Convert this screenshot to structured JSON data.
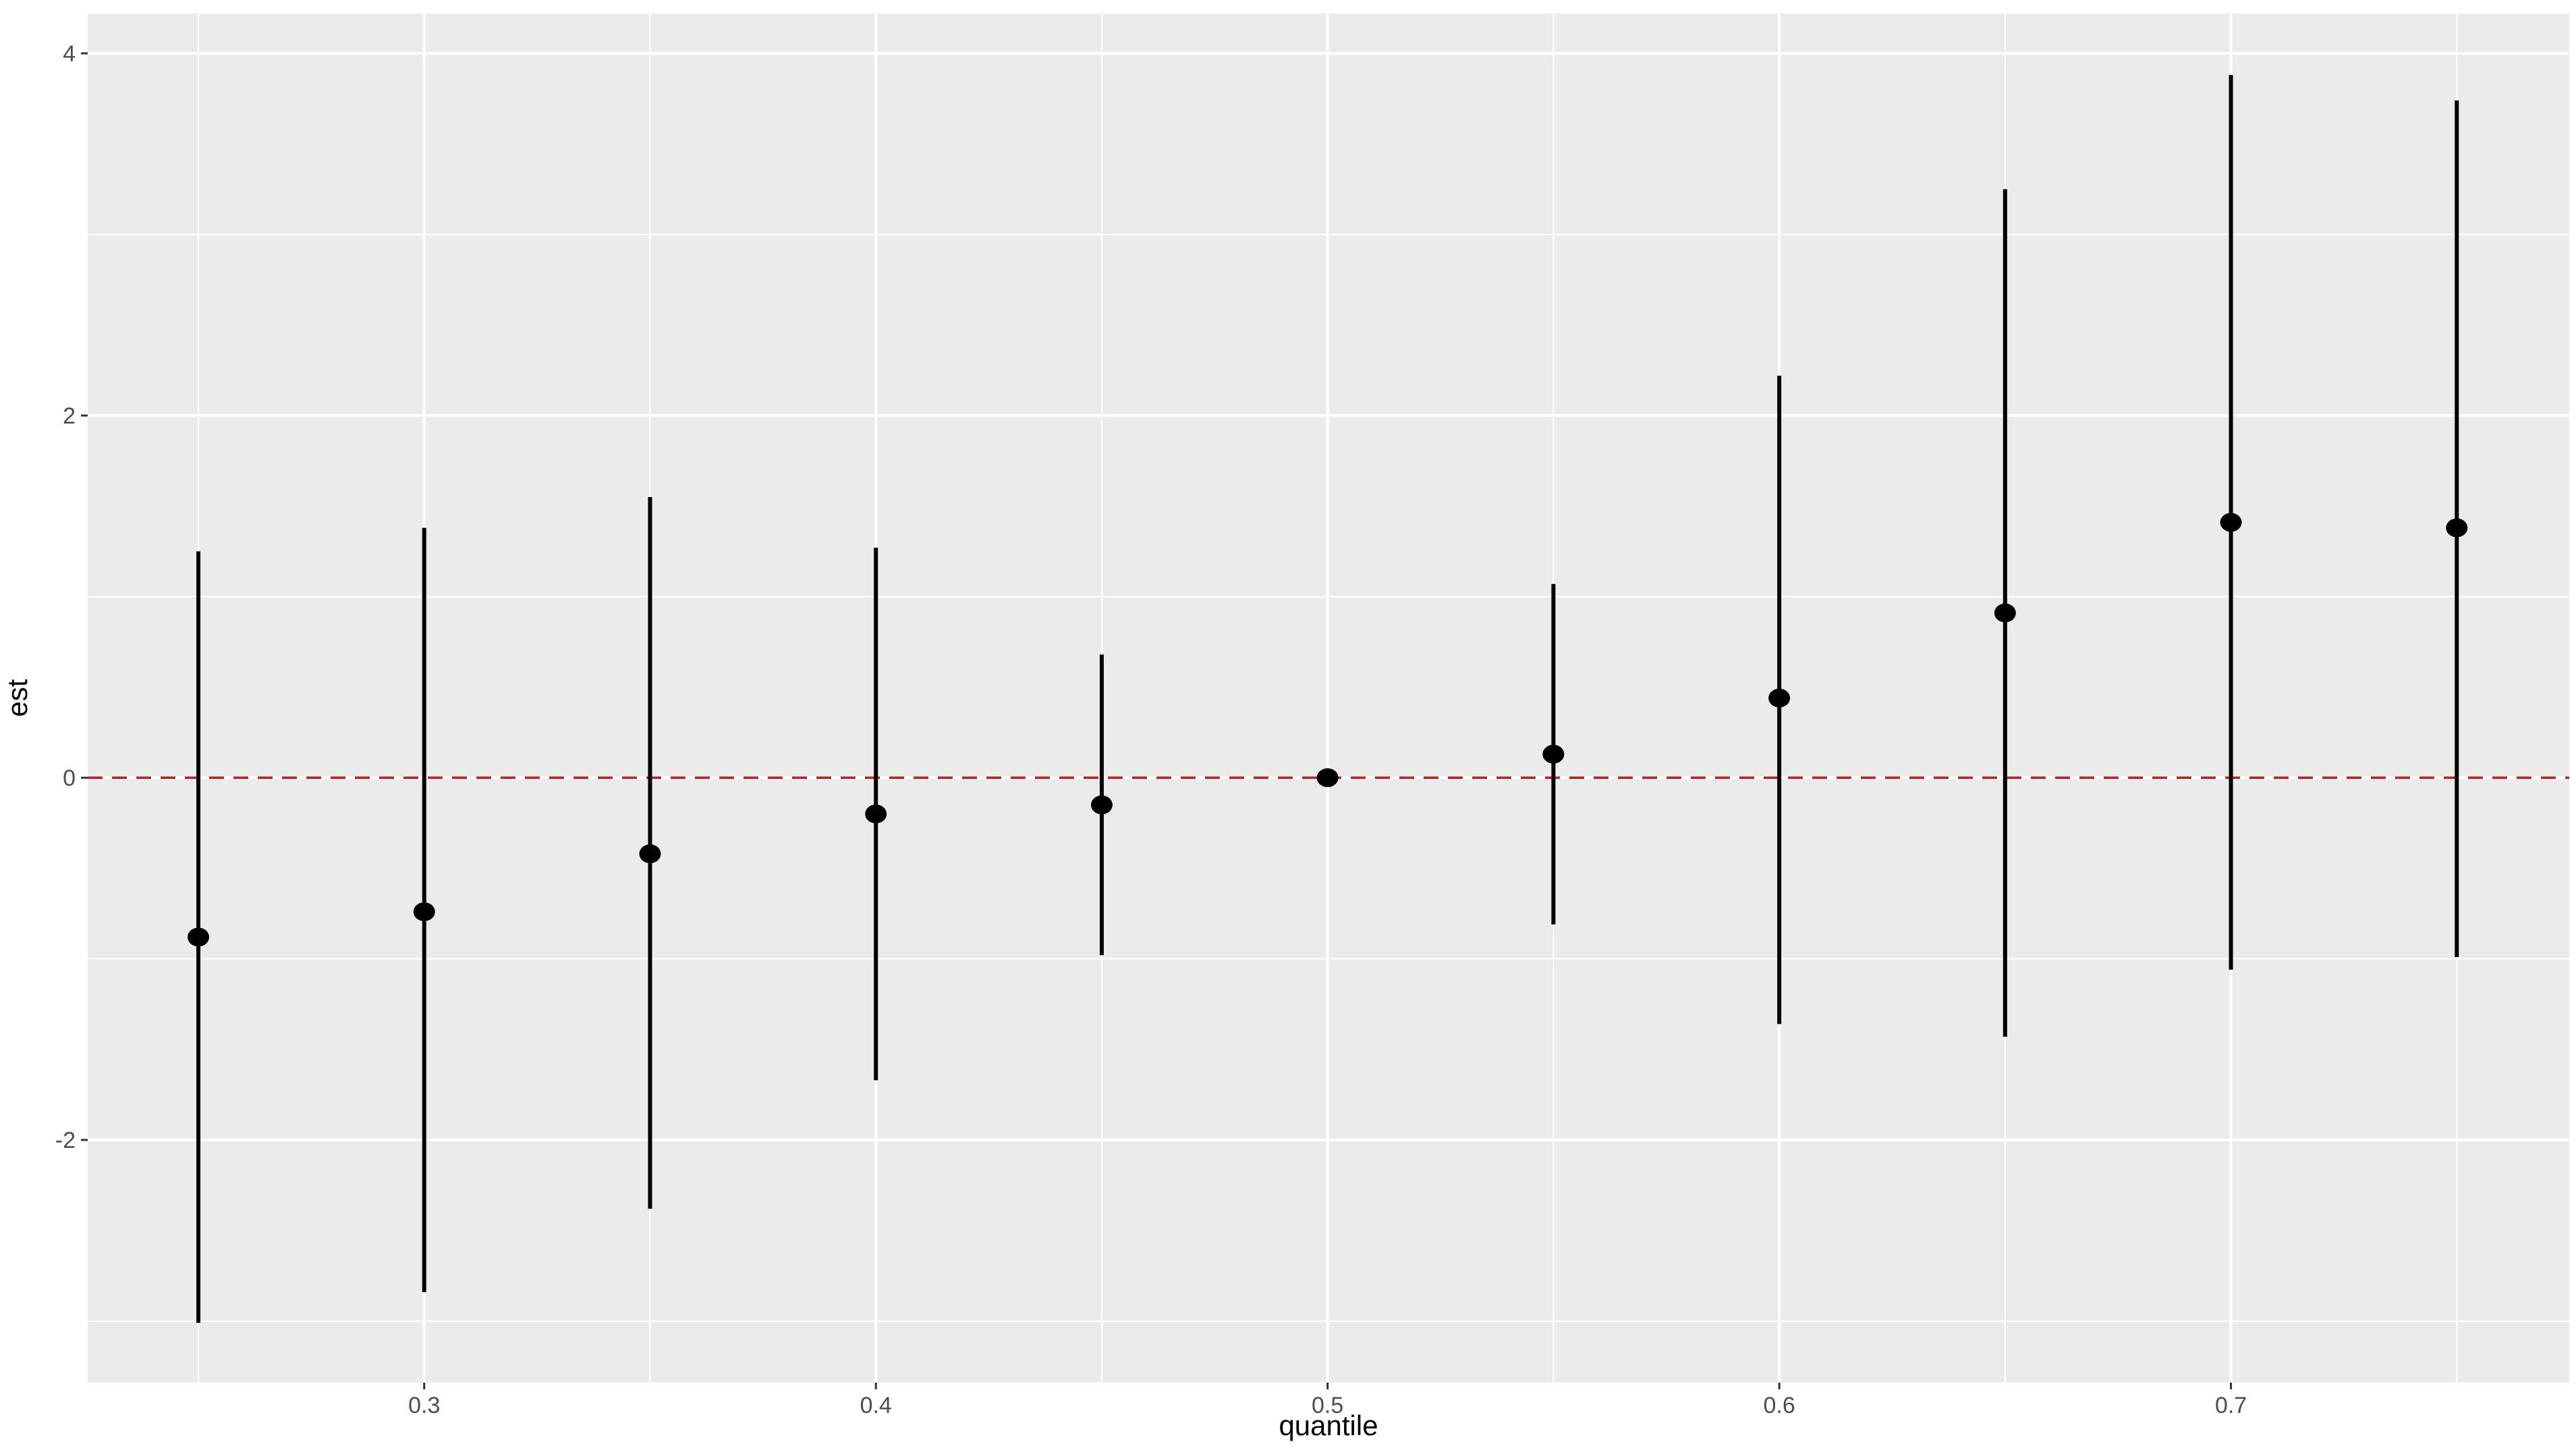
{
  "chart_data": {
    "type": "pointrange",
    "x_label": "quantile",
    "y_label": "est",
    "x": [
      0.25,
      0.3,
      0.35,
      0.4,
      0.45,
      0.5,
      0.55,
      0.6,
      0.65,
      0.7,
      0.75
    ],
    "values": [
      -0.88,
      -0.74,
      -0.42,
      -0.2,
      -0.15,
      0,
      0.13,
      0.44,
      0.91,
      1.41,
      1.38
    ],
    "lower": [
      -3.01,
      -2.84,
      -2.38,
      -1.67,
      -0.98,
      0,
      -0.81,
      -1.36,
      -1.43,
      -1.06,
      -0.99
    ],
    "upper": [
      1.25,
      1.38,
      1.55,
      1.27,
      0.68,
      0,
      1.07,
      2.22,
      3.25,
      3.88,
      3.74
    ],
    "color": "#000000",
    "xlim": [
      0.2255,
      0.7749
    ],
    "ylim": [
      -3.34,
      4.22
    ],
    "xticks": [
      0.3,
      0.4,
      0.5,
      0.6,
      0.7
    ],
    "yticks": [
      -2,
      0,
      2,
      4
    ],
    "grid": true,
    "reference_line": {
      "value": 0,
      "color": "#b22222"
    }
  }
}
